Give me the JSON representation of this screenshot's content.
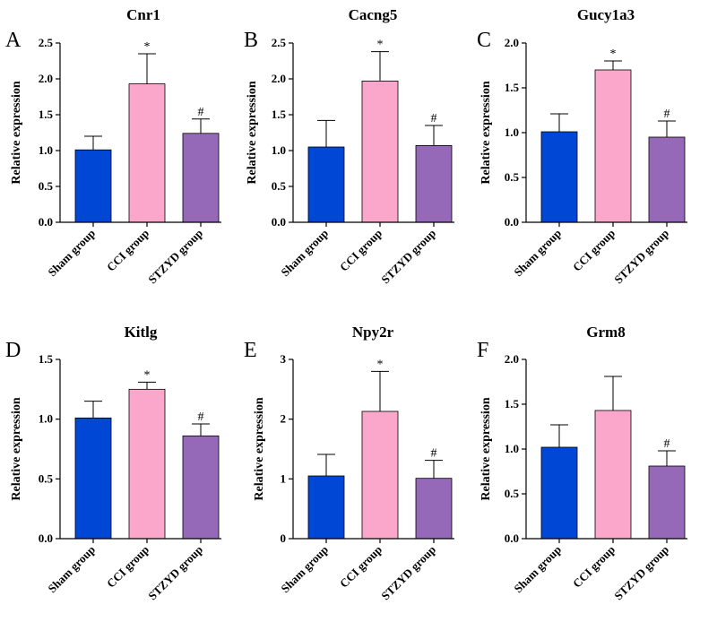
{
  "chart_data": [
    {
      "type": "bar",
      "letter": "A",
      "title": "Cnr1",
      "ylabel": "Relative expression",
      "categories": [
        "Sham group",
        "CCI group",
        "STZYD group"
      ],
      "values": [
        1.01,
        1.93,
        1.24
      ],
      "errors": [
        0.19,
        0.42,
        0.2
      ],
      "markers": [
        "",
        "*",
        "#"
      ],
      "ylim": [
        0,
        2.5
      ],
      "yticks": [
        "0.0",
        "0.5",
        "1.0",
        "1.5",
        "2.0",
        "2.5"
      ],
      "ytick_values": [
        0,
        0.5,
        1.0,
        1.5,
        2.0,
        2.5
      ]
    },
    {
      "type": "bar",
      "letter": "B",
      "title": "Cacng5",
      "ylabel": "Relative expression",
      "categories": [
        "Sham group",
        "CCI group",
        "STZYD group"
      ],
      "values": [
        1.05,
        1.97,
        1.07
      ],
      "errors": [
        0.37,
        0.41,
        0.28
      ],
      "markers": [
        "",
        "*",
        "#"
      ],
      "ylim": [
        0,
        2.5
      ],
      "yticks": [
        "0.0",
        "0.5",
        "1.0",
        "1.5",
        "2.0",
        "2.5"
      ],
      "ytick_values": [
        0,
        0.5,
        1.0,
        1.5,
        2.0,
        2.5
      ]
    },
    {
      "type": "bar",
      "letter": "C",
      "title": "Gucy1a3",
      "ylabel": "Relative expression",
      "categories": [
        "Sham group",
        "CCI group",
        "STZYD group"
      ],
      "values": [
        1.01,
        1.7,
        0.95
      ],
      "errors": [
        0.2,
        0.1,
        0.18
      ],
      "markers": [
        "",
        "*",
        "#"
      ],
      "ylim": [
        0,
        2.0
      ],
      "yticks": [
        "0.0",
        "0.5",
        "1.0",
        "1.5",
        "2.0"
      ],
      "ytick_values": [
        0,
        0.5,
        1.0,
        1.5,
        2.0
      ]
    },
    {
      "type": "bar",
      "letter": "D",
      "title": "Kitlg",
      "ylabel": "Relative expression",
      "categories": [
        "Sham group",
        "CCI group",
        "STZYD group"
      ],
      "values": [
        1.01,
        1.25,
        0.86
      ],
      "errors": [
        0.14,
        0.06,
        0.1
      ],
      "markers": [
        "",
        "*",
        "#"
      ],
      "ylim": [
        0,
        1.5
      ],
      "yticks": [
        "0.0",
        "0.5",
        "1.0",
        "1.5"
      ],
      "ytick_values": [
        0,
        0.5,
        1.0,
        1.5
      ]
    },
    {
      "type": "bar",
      "letter": "E",
      "title": "Npy2r",
      "ylabel": "Relative expression",
      "categories": [
        "Sham group",
        "CCI group",
        "STZYD group"
      ],
      "values": [
        1.05,
        2.13,
        1.01
      ],
      "errors": [
        0.36,
        0.67,
        0.3
      ],
      "markers": [
        "",
        "*",
        "#"
      ],
      "ylim": [
        0,
        3
      ],
      "yticks": [
        "0",
        "1",
        "2",
        "3"
      ],
      "ytick_values": [
        0,
        1,
        2,
        3
      ]
    },
    {
      "type": "bar",
      "letter": "F",
      "title": "Grm8",
      "ylabel": "Relative expression",
      "categories": [
        "Sham group",
        "CCI group",
        "STZYD group"
      ],
      "values": [
        1.02,
        1.43,
        0.81
      ],
      "errors": [
        0.25,
        0.38,
        0.17
      ],
      "markers": [
        "",
        "",
        "#"
      ],
      "ylim": [
        0,
        2.0
      ],
      "yticks": [
        "0.0",
        "0.5",
        "1.0",
        "1.5",
        "2.0"
      ],
      "ytick_values": [
        0,
        0.5,
        1.0,
        1.5,
        2.0
      ]
    }
  ],
  "colors": [
    "#0047d6",
    "#fba7cc",
    "#9568b8"
  ]
}
